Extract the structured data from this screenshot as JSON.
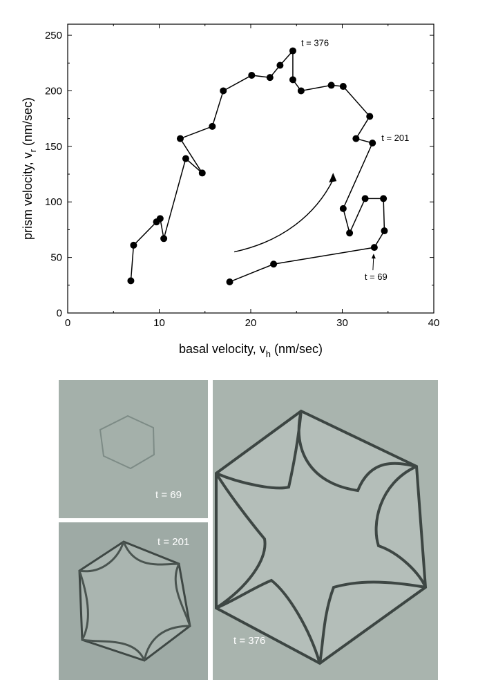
{
  "chart_data": {
    "type": "line",
    "xlabel": "basal velocity, v",
    "xlabel_sub": "h",
    "xlabel_unit": "(nm/sec)",
    "ylabel": "prism velocity, v",
    "ylabel_sub": "r",
    "ylabel_unit": "(nm/sec)",
    "xlim": [
      0,
      40
    ],
    "ylim": [
      0,
      260
    ],
    "xticks": [
      0,
      10,
      20,
      30,
      40
    ],
    "yticks": [
      0,
      50,
      100,
      150,
      200,
      250
    ],
    "grid": false,
    "series": [
      {
        "x": [
          17.7,
          22.5,
          33.5,
          34.6,
          34.5,
          32.5,
          30.8,
          30.1,
          33.3,
          31.5,
          33.0,
          30.1,
          28.8,
          25.5,
          24.6,
          24.6,
          23.2,
          22.1,
          20.1,
          17.0,
          15.8,
          12.3,
          14.7,
          12.9,
          10.5,
          10.1,
          9.7,
          7.2,
          6.9
        ],
        "y": [
          28,
          44,
          59,
          74,
          103,
          103,
          72,
          94,
          153,
          157,
          177,
          204,
          205,
          200,
          210,
          236,
          223,
          212,
          214,
          200,
          168,
          157,
          126,
          139,
          67,
          85,
          82,
          61,
          29
        ],
        "color": "#000000"
      }
    ],
    "annotations": [
      {
        "text": "t = 376",
        "x": 24.6,
        "y": 236
      },
      {
        "text": "t = 201",
        "x": 33.3,
        "y": 153
      },
      {
        "text": "t = 69",
        "x": 33.5,
        "y": 59
      }
    ],
    "trend_arrow": {
      "from": [
        18.2,
        55
      ],
      "to": [
        29.0,
        120
      ]
    }
  },
  "photos": [
    {
      "label": "t = 69",
      "panel": "top-left"
    },
    {
      "label": "t = 201",
      "panel": "bottom-left"
    },
    {
      "label": "t = 376",
      "panel": "right"
    }
  ],
  "colors": {
    "photo_bg": "#a8b3ad",
    "crystal_edge": "#4a5450"
  }
}
